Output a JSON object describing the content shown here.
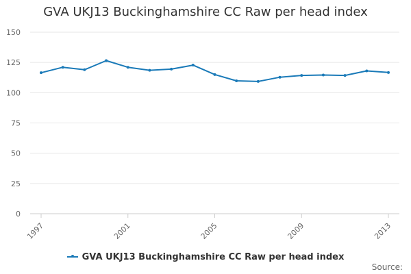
{
  "colors": {
    "series": "#1a7ab8",
    "grid": "#e6e6e6",
    "axis": "#cccccc",
    "text": "#666666"
  },
  "chart_data": {
    "type": "line",
    "title": "GVA UKJ13 Buckinghamshire CC Raw per head index",
    "xlabel": "",
    "ylabel": "",
    "x": [
      1997,
      1998,
      1999,
      2000,
      2001,
      2002,
      2003,
      2004,
      2005,
      2006,
      2007,
      2008,
      2009,
      2010,
      2011,
      2012,
      2013
    ],
    "xlim": [
      1997,
      2013
    ],
    "xticks": [
      "1997",
      "2001",
      "2005",
      "2009",
      "2013"
    ],
    "ylim": [
      0,
      150
    ],
    "yticks": [
      "0",
      "25",
      "50",
      "75",
      "100",
      "125",
      "150"
    ],
    "grid": true,
    "legend_position": "bottom",
    "series": [
      {
        "name": "GVA UKJ13 Buckinghamshire CC Raw per head index",
        "values": [
          116.5,
          121.0,
          119.0,
          126.5,
          121.0,
          118.5,
          119.5,
          122.8,
          115.0,
          109.8,
          109.3,
          112.8,
          114.3,
          114.6,
          114.3,
          118.0,
          116.7
        ]
      }
    ]
  },
  "source_label": "Source:"
}
